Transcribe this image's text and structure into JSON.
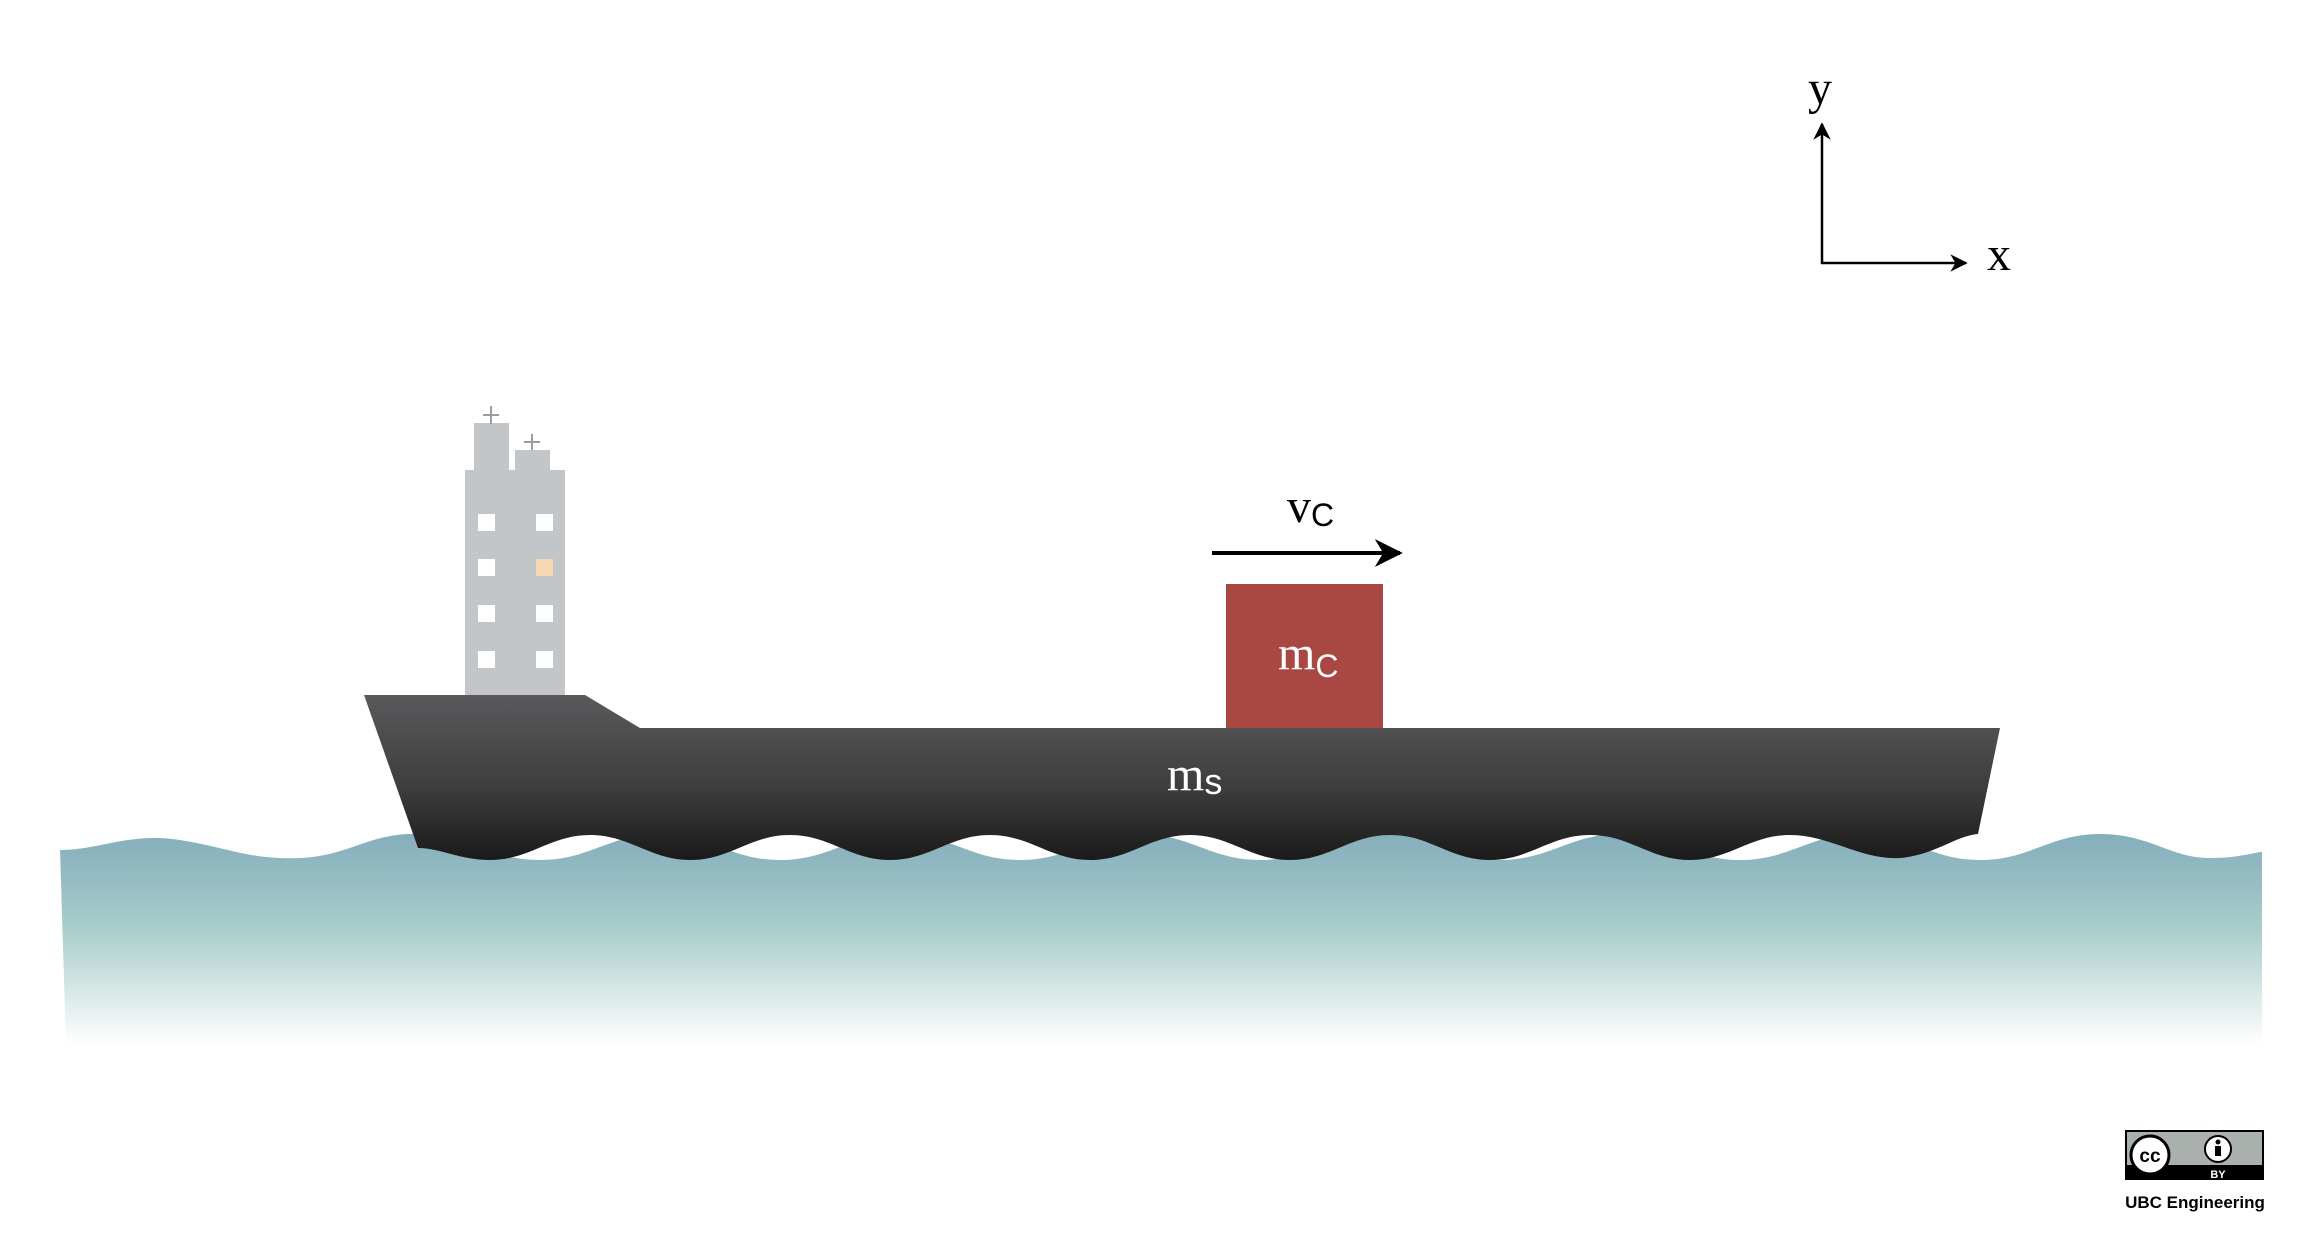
{
  "axes": {
    "x_label": "x",
    "y_label": "y"
  },
  "velocity_label": {
    "main": "v",
    "sub": "C"
  },
  "container_label": {
    "main": "m",
    "sub": "C"
  },
  "ship_label": {
    "main": "m",
    "sub": "s"
  },
  "license": {
    "badge_text": "BY",
    "credit": "UBC Engineering"
  },
  "colors": {
    "container": "#a94843",
    "hull_top": "#58585a",
    "hull_bottom": "#1c1c1c",
    "water_top": "#85aebc",
    "superstructure": "#c3c6c8",
    "window": "#ffffff",
    "window_lit": "#f6d8b2",
    "arrow": "#000000"
  }
}
